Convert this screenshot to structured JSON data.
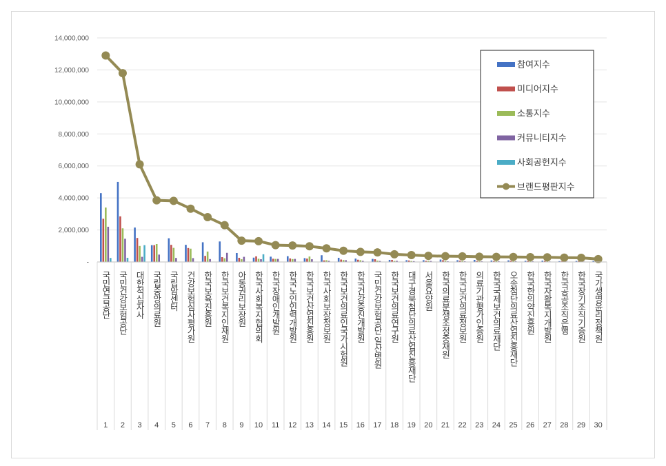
{
  "chart_data": {
    "type": "bar",
    "categories": [
      "국민연금공단",
      "국민건강보험공단",
      "대한적십자사",
      "국립중앙의료원",
      "국립암센터",
      "건강보험심사평가원",
      "한국보육진흥원",
      "한국보건복지인재원",
      "아동권리보장원",
      "한국사회복지협의회",
      "한국장애인개발원",
      "한국노인인력개발원",
      "한국보건산업진흥원",
      "한국사회보장정보원",
      "한국보건의료인국가시험원",
      "한국건강증진개발원",
      "국민건강보험공단 일산병원",
      "한국보건의료연구원",
      "대구경북첨단의료산업진흥재단",
      "서울요양원",
      "한국의료분쟁조정중재원",
      "한국보건의료정보원",
      "의료기관평가인증원",
      "한국국제보건의료재단",
      "오송첨단의료산업진흥재단",
      "한국한의약진흥원",
      "한국자활복지개발원",
      "한국공공조직은행",
      "한국장기조직기증원",
      "국가생명윤리정책원"
    ],
    "index_labels": [
      "1",
      "2",
      "3",
      "4",
      "5",
      "6",
      "7",
      "8",
      "9",
      "10",
      "11",
      "12",
      "13",
      "14",
      "15",
      "16",
      "17",
      "18",
      "19",
      "20",
      "21",
      "22",
      "23",
      "24",
      "25",
      "26",
      "27",
      "28",
      "29",
      "30"
    ],
    "series": [
      {
        "name": "참여지수",
        "color": "#4472c4",
        "values": [
          4300000,
          5000000,
          2150000,
          1050000,
          1480000,
          1070000,
          1230000,
          1280000,
          560000,
          270000,
          330000,
          360000,
          240000,
          420000,
          260000,
          210000,
          190000,
          130000,
          110000,
          110000,
          150000,
          110000,
          130000,
          90000,
          100000,
          70000,
          80000,
          50000,
          60000,
          60000
        ]
      },
      {
        "name": "미디어지수",
        "color": "#c0504d",
        "values": [
          2700000,
          2850000,
          1500000,
          1050000,
          1070000,
          870000,
          380000,
          300000,
          260000,
          350000,
          200000,
          220000,
          210000,
          100000,
          150000,
          140000,
          170000,
          130000,
          90000,
          70000,
          110000,
          80000,
          60000,
          60000,
          70000,
          60000,
          60000,
          40000,
          50000,
          40000
        ]
      },
      {
        "name": "소통지수",
        "color": "#9bbb59",
        "values": [
          3400000,
          2100000,
          1000000,
          1120000,
          880000,
          830000,
          650000,
          230000,
          170000,
          200000,
          190000,
          180000,
          340000,
          110000,
          120000,
          110000,
          80000,
          60000,
          60000,
          70000,
          60000,
          60000,
          50000,
          50000,
          50000,
          50000,
          40000,
          40000,
          40000,
          30000
        ]
      },
      {
        "name": "커뮤니티지수",
        "color": "#8064a2",
        "values": [
          2200000,
          1450000,
          320000,
          460000,
          250000,
          240000,
          180000,
          570000,
          320000,
          170000,
          190000,
          190000,
          170000,
          70000,
          110000,
          70000,
          60000,
          70000,
          50000,
          60000,
          40000,
          40000,
          40000,
          40000,
          40000,
          40000,
          30000,
          30000,
          30000,
          30000
        ]
      },
      {
        "name": "사회공헌지수",
        "color": "#4bacc6",
        "values": [
          250000,
          260000,
          1050000,
          0,
          0,
          0,
          0,
          0,
          0,
          480000,
          0,
          0,
          0,
          0,
          0,
          0,
          0,
          0,
          0,
          0,
          0,
          0,
          0,
          0,
          0,
          0,
          0,
          0,
          0,
          0
        ]
      },
      {
        "name": "브랜드평판지수",
        "color": "#948a54",
        "type": "line",
        "values": [
          12900000,
          11800000,
          6100000,
          3850000,
          3820000,
          3330000,
          2800000,
          2300000,
          1330000,
          1300000,
          1050000,
          1030000,
          980000,
          850000,
          700000,
          630000,
          600000,
          480000,
          430000,
          380000,
          360000,
          350000,
          330000,
          320000,
          310000,
          300000,
          290000,
          270000,
          260000,
          180000
        ]
      }
    ],
    "yticks": [
      "14,000,000",
      "12,000,000",
      "10,000,000",
      "8,000,000",
      "6,000,000",
      "4,000,000",
      "2,000,000",
      "-"
    ],
    "ylim": [
      0,
      14000000
    ],
    "grid": true,
    "legend_position": "top-right"
  }
}
